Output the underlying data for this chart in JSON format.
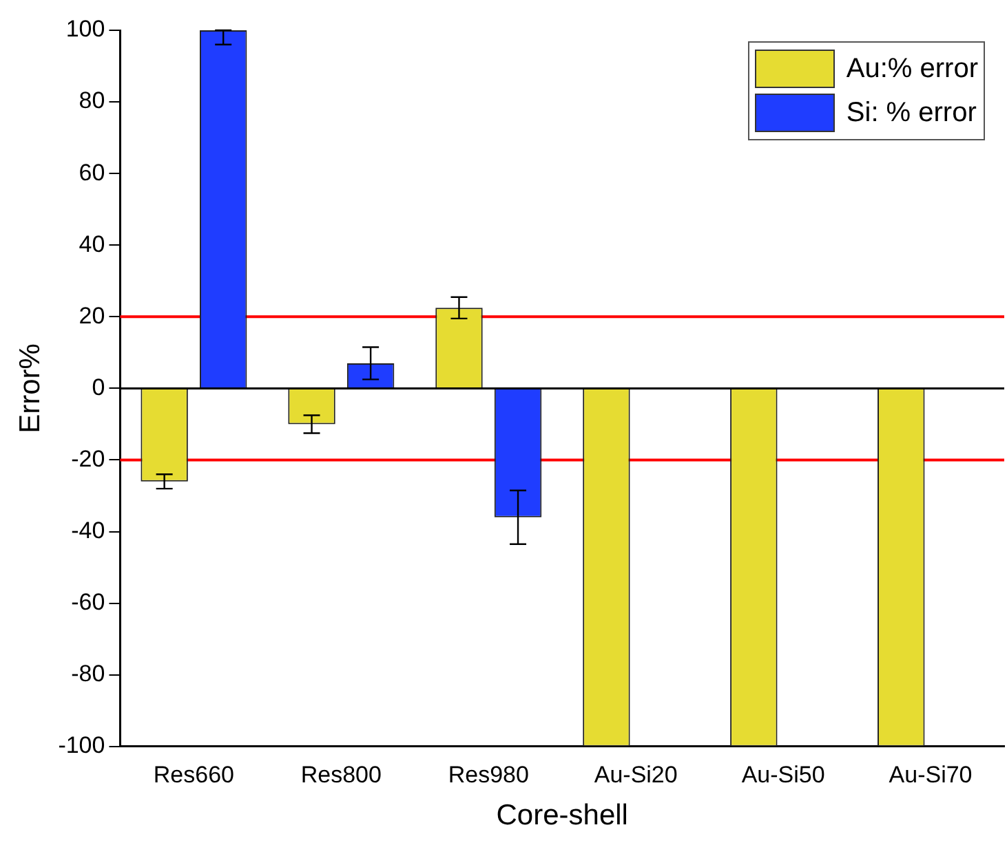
{
  "chart_data": {
    "type": "bar",
    "xlabel": "Core-shell",
    "ylabel": "Error%",
    "categories": [
      "Res660",
      "Res800",
      "Res980",
      "Au-Si20",
      "Au-Si50",
      "Au-Si70"
    ],
    "series": [
      {
        "name": "Au:% error",
        "color": "#e6dc32",
        "values": [
          -26,
          -10,
          22.5,
          -100,
          -100,
          -100
        ],
        "errors": [
          2,
          2.5,
          3,
          null,
          null,
          null
        ]
      },
      {
        "name": "Si: % error",
        "color": "#1f3dff",
        "values": [
          100,
          7,
          -36,
          null,
          null,
          null
        ],
        "errors": [
          [
            96,
            100
          ],
          4.5,
          7.5,
          null,
          null,
          null
        ]
      }
    ],
    "ylim": [
      -100,
      100
    ],
    "yticks": [
      -100,
      -80,
      -60,
      -40,
      -20,
      0,
      20,
      40,
      60,
      80,
      100
    ],
    "ref_lines": [
      {
        "axis": "y",
        "value": 20,
        "color": "#ff0000"
      },
      {
        "axis": "y",
        "value": -20,
        "color": "#ff0000"
      }
    ],
    "grid": false,
    "legend": "top right"
  }
}
